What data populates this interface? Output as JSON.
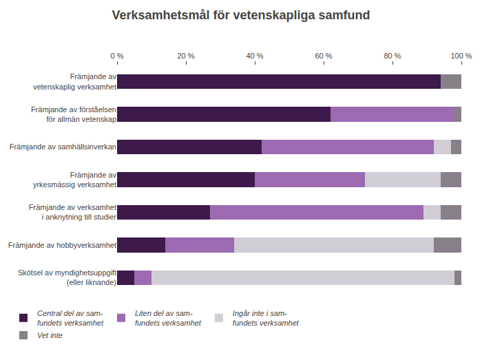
{
  "chart_data": {
    "type": "bar",
    "orientation": "horizontal",
    "stacked": true,
    "title": "Verksamhetsmål för vetenskapliga samfund",
    "categories": [
      "Främjande av\nvetenskaplig verksamhet",
      "Främjande av förståelsen\nför allmän vetenskap",
      "Främjande av samhällsinverkan",
      "Främjande av\nyrkesmässig verksamhet",
      "Främjande av verksamhet\ni anknytning till studier",
      "Främjande av hobbyverksamhet",
      "Skötsel av myndighetsuppgift\n(eller liknande)"
    ],
    "series": [
      {
        "name": "Central del av sam-\nfundets verksamhet",
        "color": "#3d1a4a",
        "values": [
          94,
          62,
          42,
          40,
          27,
          14,
          5
        ]
      },
      {
        "name": "Liten del av sam-\nfundets verksamhet",
        "color": "#9b6ab0",
        "values": [
          0,
          36,
          50,
          32,
          62,
          20,
          5
        ]
      },
      {
        "name": "Ingår inte i sam-\nfundets verksamhet",
        "color": "#d0cdd5",
        "values": [
          0,
          0,
          5,
          22,
          5,
          58,
          88
        ]
      },
      {
        "name": "Vet inte",
        "color": "#888088",
        "values": [
          6,
          2,
          3,
          6,
          6,
          8,
          2
        ]
      }
    ],
    "xlim": [
      0,
      100
    ],
    "xticks": [
      {
        "value": 0,
        "label": "0 %"
      },
      {
        "value": 20,
        "label": "20 %"
      },
      {
        "value": 40,
        "label": "40 %"
      },
      {
        "value": 60,
        "label": "60 %"
      },
      {
        "value": 80,
        "label": "80 %"
      },
      {
        "value": 100,
        "label": "100 %"
      }
    ],
    "grid": false,
    "legend": "bottom"
  }
}
